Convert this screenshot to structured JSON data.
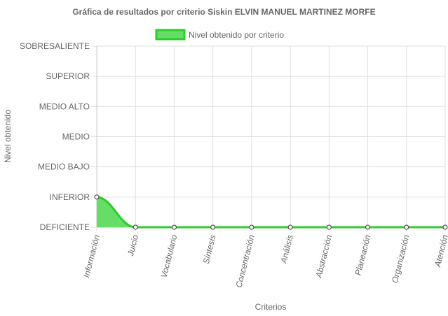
{
  "chart_data": {
    "type": "area",
    "title": "Gráfica de resultados por criterio Siskin ELVIN MANUEL MARTINEZ MORFE",
    "xlabel": "Criterios",
    "ylabel": "Nivel obtenido",
    "categories": [
      "Información",
      "Juicio",
      "Vocabulario",
      "Síntesis",
      "Concentración",
      "Análisis",
      "Abstracción",
      "Planeación",
      "Organización",
      "Atención"
    ],
    "y_levels": [
      "DEFICIENTE",
      "INFERIOR",
      "MEDIO BAJO",
      "MEDIO",
      "MEDIO ALTO",
      "SUPERIOR",
      "SOBRESALIENTE"
    ],
    "ylim": [
      0,
      6
    ],
    "series": [
      {
        "name": "Nivel obtenido por criterio",
        "values": [
          1,
          0,
          0,
          0,
          0,
          0,
          0,
          0,
          0,
          0
        ],
        "color": "#2ecc2e",
        "fill": "#66dd66"
      }
    ],
    "legend": "top",
    "grid": true
  }
}
